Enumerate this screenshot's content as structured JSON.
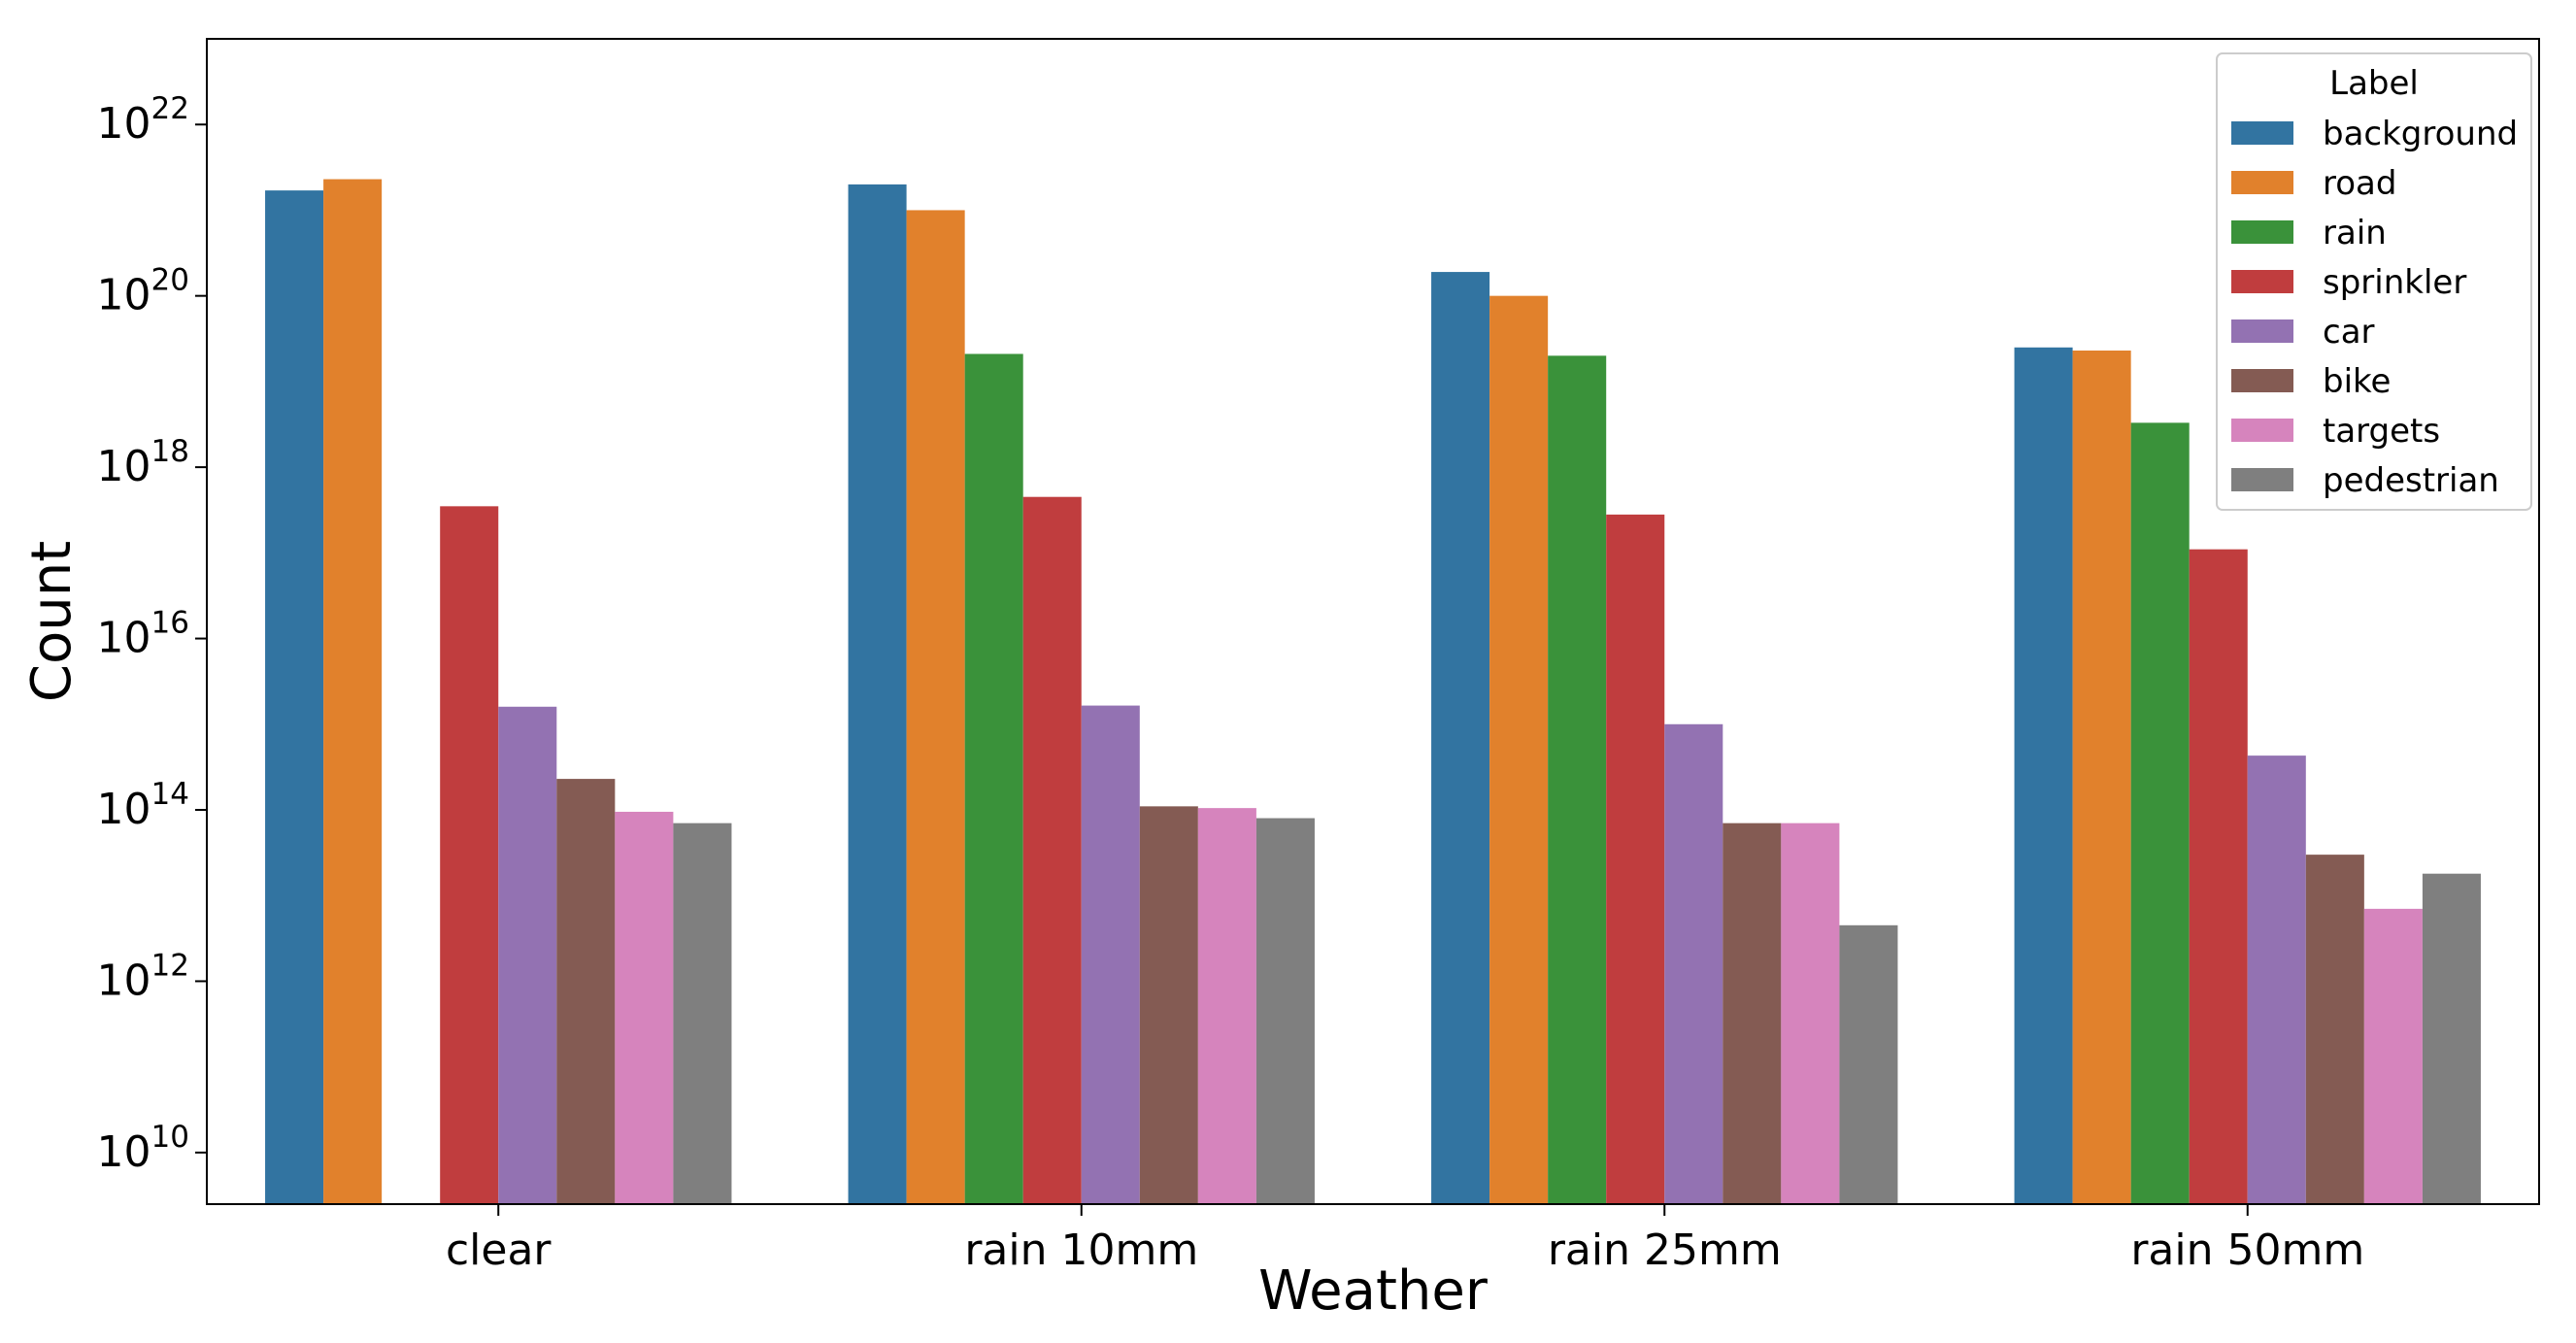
{
  "chart_data": {
    "type": "bar",
    "xlabel": "Weather",
    "ylabel": "Count",
    "yscale": "log",
    "ylim": [
      2500000000.0,
      1e+23
    ],
    "yticks": [
      10000000000.0,
      1000000000000.0,
      100000000000000.0,
      1e+16,
      1e+18,
      1e+20,
      1e+22
    ],
    "ytick_exponents": [
      "10",
      "12",
      "14",
      "16",
      "18",
      "20",
      "22"
    ],
    "ytick_base": "10",
    "grid": false,
    "categories": [
      "clear",
      "rain 10mm",
      "rain 25mm",
      "rain 50mm"
    ],
    "legend": {
      "title": "Label",
      "placement": "top-right"
    },
    "series": [
      {
        "name": "background",
        "color": "#3274a1",
        "values": [
          1.7e+21,
          2e+21,
          1.9e+20,
          2.5e+19
        ]
      },
      {
        "name": "road",
        "color": "#e1812c",
        "values": [
          2.3e+21,
          1e+21,
          1e+20,
          2.3e+19
        ]
      },
      {
        "name": "rain",
        "color": "#3a923a",
        "values": [
          null,
          2.1e+19,
          2e+19,
          3.3e+18
        ]
      },
      {
        "name": "sprinkler",
        "color": "#c03d3e",
        "values": [
          3.5e+17,
          4.5e+17,
          2.8e+17,
          1.1e+17
        ]
      },
      {
        "name": "car",
        "color": "#9372b2",
        "values": [
          1600000000000000.0,
          1650000000000000.0,
          1000000000000000.0,
          430000000000000.0
        ]
      },
      {
        "name": "bike",
        "color": "#845b53",
        "values": [
          230000000000000.0,
          110000000000000.0,
          70000000000000.0,
          30000000000000.0
        ]
      },
      {
        "name": "targets",
        "color": "#d684bd",
        "values": [
          95000000000000.0,
          105000000000000.0,
          70000000000000.0,
          7000000000000.0
        ]
      },
      {
        "name": "pedestrian",
        "color": "#7f7f7f",
        "values": [
          70000000000000.0,
          80000000000000.0,
          4500000000000.0,
          18000000000000.0
        ]
      }
    ]
  }
}
